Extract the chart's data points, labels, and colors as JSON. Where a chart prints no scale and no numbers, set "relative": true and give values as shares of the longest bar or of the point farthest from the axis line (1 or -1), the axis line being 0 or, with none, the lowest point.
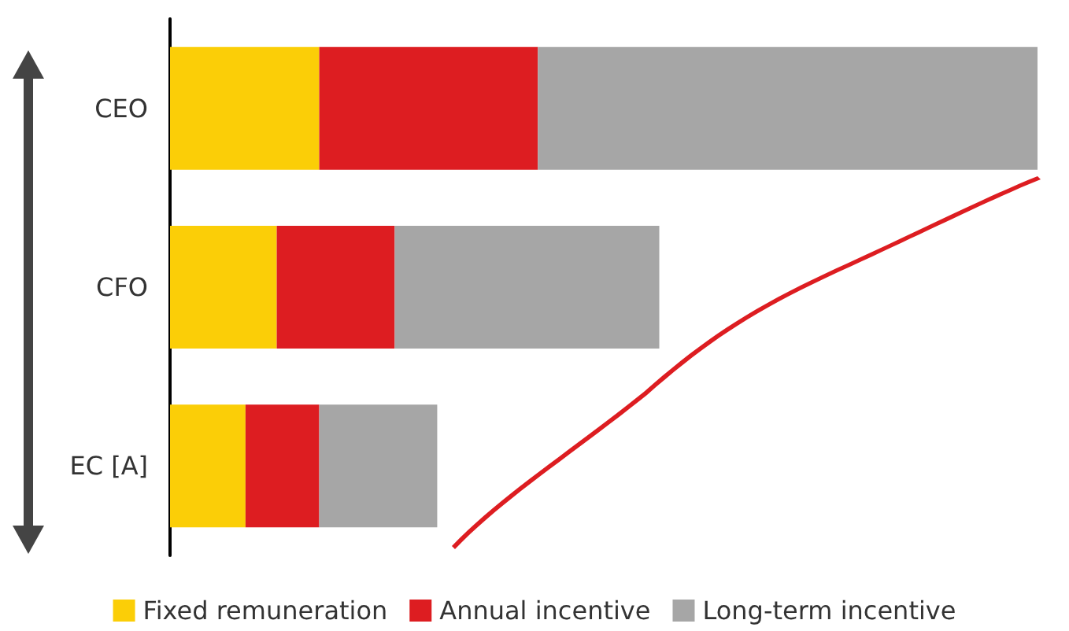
{
  "chart_data": {
    "type": "bar",
    "orientation": "horizontal",
    "stacked": true,
    "relative": true,
    "categories": [
      "CEO",
      "CFO",
      "EC [A]"
    ],
    "series": [
      {
        "name": "Fixed remuneration",
        "color": "#fbce07",
        "values": [
          0.172,
          0.123,
          0.087
        ]
      },
      {
        "name": "Annual incentive",
        "color": "#dd1d21",
        "values": [
          0.252,
          0.136,
          0.085
        ]
      },
      {
        "name": "Long-term incentive",
        "color": "#a6a6a6",
        "values": [
          0.576,
          0.305,
          0.136
        ]
      }
    ],
    "legend": "bottom"
  }
}
